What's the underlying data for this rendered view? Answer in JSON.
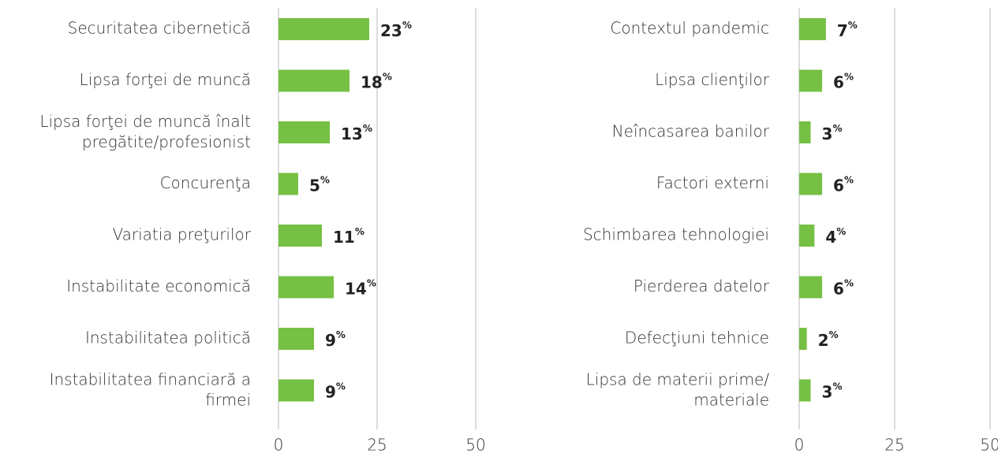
{
  "chart_data": [
    {
      "type": "barh",
      "categories": [
        "Securitatea cibernetică",
        "Lipsa forţei de muncă",
        [
          "Lipsa forţei de muncă înalt",
          "pregătite/profesionist"
        ],
        "Concurenţa",
        "Variatia preţurilor",
        "Instabilitate economică",
        "Instabilitatea politică",
        [
          "Instabilitatea financiară a",
          "firmei"
        ]
      ],
      "values": [
        23,
        18,
        13,
        5,
        11,
        14,
        9,
        9
      ],
      "value_labels": [
        "23%",
        "18%",
        "13%",
        "5%",
        "11%",
        "14%",
        "9%",
        "9%"
      ],
      "color": "#76c043",
      "xlim": [
        0,
        50
      ],
      "xticks": [
        0,
        25,
        50
      ],
      "grid": true
    },
    {
      "type": "barh",
      "categories": [
        "Contextul pandemic",
        "Lipsa clienţilor",
        "Neîncasarea banilor",
        "Factori externi",
        "Schimbarea tehnologiei",
        "Pierderea datelor",
        "Defecţiuni tehnice",
        [
          "Lipsa de materii prime/",
          "materiale"
        ]
      ],
      "values": [
        7,
        6,
        3,
        6,
        4,
        6,
        2,
        3
      ],
      "value_labels": [
        "7%",
        "6%",
        "3%",
        "6%",
        "4%",
        "6%",
        "2%",
        "3%"
      ],
      "color": "#76c043",
      "xlim": [
        0,
        50
      ],
      "xticks": [
        0,
        25,
        50
      ],
      "grid": true
    }
  ]
}
